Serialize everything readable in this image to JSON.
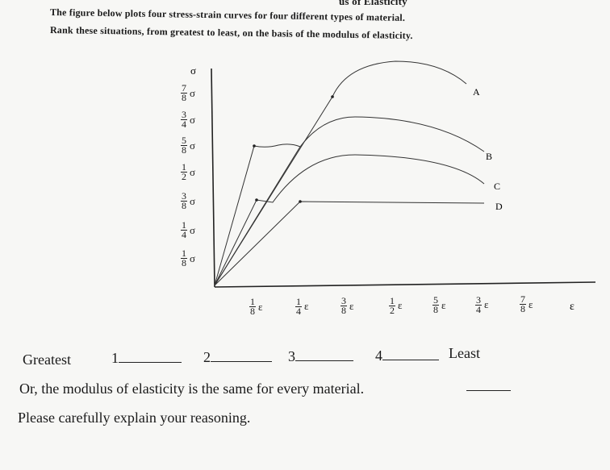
{
  "header": {
    "title": "us of Elasticity"
  },
  "question": {
    "line1": "The figure below plots four stress-strain curves for four different types of material.",
    "line2": "Rank these situations, from greatest to least, on the basis of the modulus of elasticity."
  },
  "figure": {
    "y_axis_label": "σ",
    "x_axis_label": "ε",
    "y_ticks": [
      {
        "num": "7",
        "den": "8",
        "symbol": "σ"
      },
      {
        "num": "3",
        "den": "4",
        "symbol": "σ"
      },
      {
        "num": "5",
        "den": "8",
        "symbol": "σ"
      },
      {
        "num": "1",
        "den": "2",
        "symbol": "σ"
      },
      {
        "num": "3",
        "den": "8",
        "symbol": "σ"
      },
      {
        "num": "1",
        "den": "4",
        "symbol": "σ"
      },
      {
        "num": "1",
        "den": "8",
        "symbol": "σ"
      }
    ],
    "x_ticks": [
      {
        "num": "1",
        "den": "8",
        "symbol": "ε"
      },
      {
        "num": "1",
        "den": "4",
        "symbol": "ε"
      },
      {
        "num": "3",
        "den": "8",
        "symbol": "ε"
      },
      {
        "num": "1",
        "den": "2",
        "symbol": "ε"
      },
      {
        "num": "5",
        "den": "8",
        "symbol": "ε"
      },
      {
        "num": "3",
        "den": "4",
        "symbol": "ε"
      },
      {
        "num": "7",
        "den": "8",
        "symbol": "ε"
      }
    ],
    "curve_labels": [
      "A",
      "B",
      "C",
      "D"
    ]
  },
  "answer": {
    "greatest": "Greatest",
    "ranks": [
      "1",
      "2",
      "3",
      "4"
    ],
    "least": "Least",
    "alternative": "Or, the modulus of elasticity is the same for every material.",
    "instruction": "Please carefully explain your reasoning."
  }
}
